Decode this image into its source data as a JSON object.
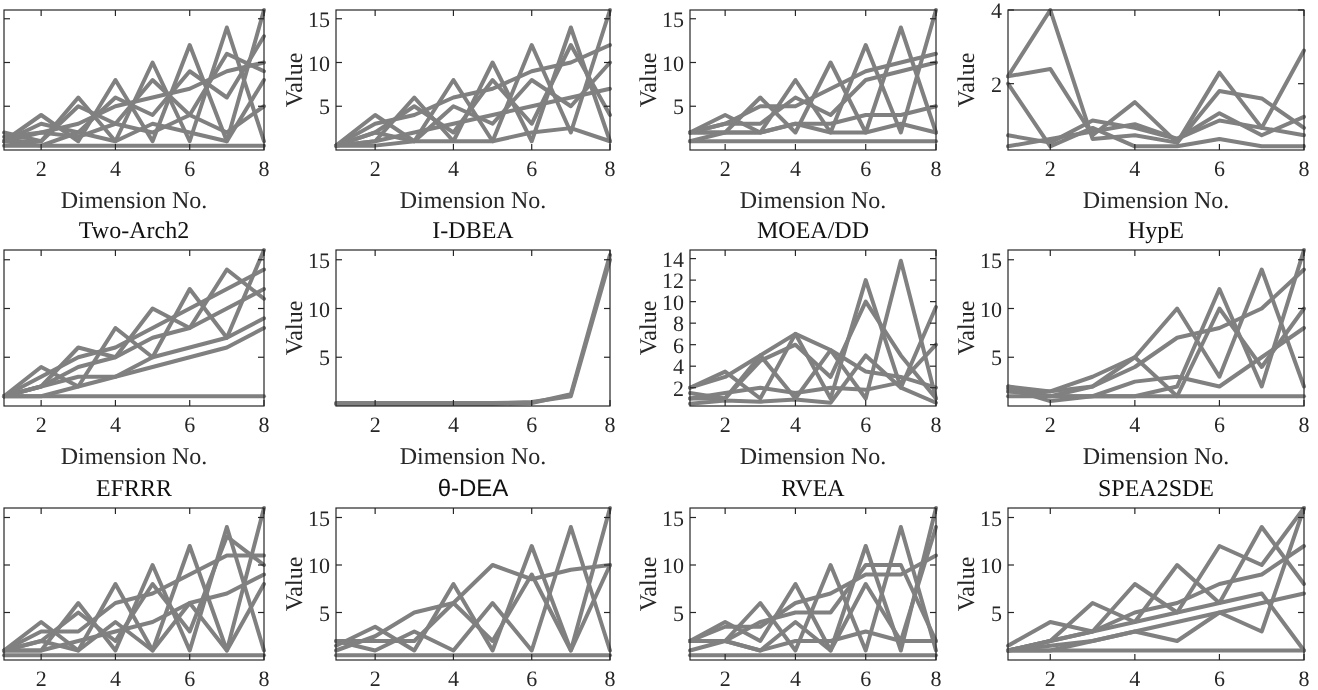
{
  "chart_data": [
    {
      "type": "line",
      "xlabel": "Dimension No.",
      "x": [
        1,
        2,
        3,
        4,
        5,
        6,
        7,
        8
      ],
      "xlim": [
        1,
        8
      ],
      "xticks": [
        2,
        4,
        6,
        8
      ],
      "ylim": [
        0,
        16
      ],
      "yticks": [
        5,
        10,
        15
      ],
      "tick_labels": "x",
      "series": [
        {
          "color": "#808080",
          "values": [
            1,
            4,
            1,
            8,
            1,
            12,
            1,
            16
          ]
        },
        {
          "color": "#808080",
          "values": [
            1,
            1,
            6,
            1,
            10,
            1,
            14,
            1
          ]
        },
        {
          "color": "#808080",
          "values": [
            1,
            2,
            3,
            5,
            6,
            7,
            9,
            10
          ]
        },
        {
          "color": "#808080",
          "values": [
            2,
            1,
            5,
            3,
            8,
            4,
            11,
            9
          ]
        },
        {
          "color": "#808080",
          "values": [
            1,
            3,
            2,
            6,
            4,
            9,
            6,
            13
          ]
        },
        {
          "color": "#808080",
          "values": [
            0.5,
            0.5,
            0.5,
            0.5,
            0.5,
            0.5,
            0.5,
            0.5
          ]
        },
        {
          "color": "#808080",
          "values": [
            1.5,
            2,
            1.5,
            3,
            2,
            4,
            2,
            5
          ]
        },
        {
          "color": "#808080",
          "values": [
            1,
            0.5,
            2,
            1,
            3,
            2,
            1,
            8
          ]
        }
      ]
    },
    {
      "type": "line",
      "xlabel": "Dimension No.",
      "ylabel": "Value",
      "x": [
        1,
        2,
        3,
        4,
        5,
        6,
        7,
        8
      ],
      "xlim": [
        1,
        8
      ],
      "xticks": [
        2,
        4,
        6,
        8
      ],
      "ylim": [
        0,
        16
      ],
      "yticks": [
        5,
        10,
        15
      ],
      "series": [
        {
          "color": "#808080",
          "values": [
            0.5,
            4,
            1,
            8,
            1,
            12,
            2,
            16
          ]
        },
        {
          "color": "#808080",
          "values": [
            0.5,
            1,
            6,
            1,
            10,
            1,
            14,
            1
          ]
        },
        {
          "color": "#808080",
          "values": [
            0.5,
            3,
            4,
            6,
            7,
            9,
            10,
            12
          ]
        },
        {
          "color": "#808080",
          "values": [
            0.5,
            2,
            5,
            2,
            8,
            3,
            12,
            4
          ]
        },
        {
          "color": "#808080",
          "values": [
            0.5,
            1,
            2,
            3,
            4,
            5,
            6,
            7
          ]
        },
        {
          "color": "#808080",
          "values": [
            0.5,
            0.5,
            1,
            1,
            1,
            2,
            2.5,
            1
          ]
        },
        {
          "color": "#808080",
          "values": [
            0.5,
            2,
            1,
            5,
            3,
            8,
            5,
            10
          ]
        }
      ]
    },
    {
      "type": "line",
      "xlabel": "Dimension No.",
      "ylabel": "Value",
      "x": [
        1,
        2,
        3,
        4,
        5,
        6,
        7,
        8
      ],
      "xlim": [
        1,
        8
      ],
      "xticks": [
        2,
        4,
        6,
        8
      ],
      "ylim": [
        0,
        16
      ],
      "yticks": [
        5,
        10,
        15
      ],
      "series": [
        {
          "color": "#808080",
          "values": [
            2,
            4,
            2,
            8,
            2,
            12,
            2,
            16
          ]
        },
        {
          "color": "#808080",
          "values": [
            2,
            2,
            6,
            2,
            10,
            2,
            14,
            2
          ]
        },
        {
          "color": "#808080",
          "values": [
            2,
            3,
            5,
            5,
            7,
            9,
            10,
            11
          ]
        },
        {
          "color": "#808080",
          "values": [
            2,
            3,
            3,
            6,
            4,
            8,
            9,
            10
          ]
        },
        {
          "color": "#808080",
          "values": [
            1,
            2,
            2,
            3,
            3,
            4,
            4,
            5
          ]
        },
        {
          "color": "#808080",
          "values": [
            1,
            1,
            1,
            1,
            1,
            1,
            1,
            1
          ]
        },
        {
          "color": "#808080",
          "values": [
            2,
            2,
            2,
            3,
            2,
            2,
            3,
            2
          ]
        }
      ]
    },
    {
      "type": "line",
      "xlabel": "Dimension No.",
      "ylabel": "Value",
      "x": [
        1,
        2,
        3,
        4,
        5,
        6,
        7,
        8
      ],
      "xlim": [
        1,
        8
      ],
      "xticks": [
        2,
        4,
        6,
        8
      ],
      "ylim": [
        0.2,
        4
      ],
      "yticks": [
        2,
        4
      ],
      "series": [
        {
          "color": "#808080",
          "values": [
            2.2,
            4,
            0.5,
            0.6,
            0.4,
            2.3,
            0.8,
            2.9
          ]
        },
        {
          "color": "#808080",
          "values": [
            2.2,
            2.4,
            0.6,
            1.5,
            0.4,
            1.8,
            1.6,
            0.8
          ]
        },
        {
          "color": "#808080",
          "values": [
            0.6,
            0.4,
            1,
            0.8,
            0.5,
            1,
            0.8,
            0.6
          ]
        },
        {
          "color": "#808080",
          "values": [
            2,
            0.3,
            0.8,
            0.3,
            0.3,
            0.5,
            0.3,
            0.3
          ]
        },
        {
          "color": "#808080",
          "values": [
            0.3,
            0.5,
            0.7,
            0.9,
            0.5,
            1.2,
            0.6,
            1.1
          ]
        }
      ]
    },
    {
      "type": "line",
      "title": "Two-Arch2",
      "xlabel": "Dimension No.",
      "x": [
        1,
        2,
        3,
        4,
        5,
        6,
        7,
        8
      ],
      "xlim": [
        1,
        8
      ],
      "xticks": [
        2,
        4,
        6,
        8
      ],
      "ylim": [
        0,
        16
      ],
      "yticks": [
        5,
        10,
        15
      ],
      "tick_labels": "x",
      "series": [
        {
          "color": "#808080",
          "values": [
            1,
            4,
            2,
            8,
            5,
            12,
            7,
            16
          ]
        },
        {
          "color": "#808080",
          "values": [
            1,
            2,
            6,
            5,
            10,
            8,
            14,
            11
          ]
        },
        {
          "color": "#808080",
          "values": [
            1,
            3,
            5,
            6,
            8,
            10,
            12,
            14
          ]
        },
        {
          "color": "#808080",
          "values": [
            1,
            2,
            4,
            5,
            7,
            8,
            10,
            12
          ]
        },
        {
          "color": "#808080",
          "values": [
            1,
            1,
            2,
            3,
            4,
            5,
            6,
            8
          ]
        },
        {
          "color": "#808080",
          "values": [
            1,
            1,
            1,
            1,
            1,
            1,
            1,
            1
          ]
        },
        {
          "color": "#808080",
          "values": [
            1,
            2,
            3,
            3,
            5,
            6,
            7,
            9
          ]
        }
      ]
    },
    {
      "type": "line",
      "title": "I-DBEA",
      "xlabel": "Dimension No.",
      "ylabel": "Value",
      "x": [
        1,
        2,
        3,
        4,
        5,
        6,
        7,
        8
      ],
      "xlim": [
        1,
        8
      ],
      "xticks": [
        2,
        4,
        6,
        8
      ],
      "ylim": [
        0,
        16
      ],
      "yticks": [
        5,
        10,
        15
      ],
      "series": [
        {
          "color": "#808080",
          "values": [
            0.2,
            0.2,
            0.2,
            0.2,
            0.2,
            0.3,
            1.2,
            15.5
          ]
        },
        {
          "color": "#808080",
          "values": [
            0.3,
            0.3,
            0.3,
            0.3,
            0.3,
            0.4,
            1,
            15
          ]
        }
      ]
    },
    {
      "type": "line",
      "title": "MOEA/DD",
      "xlabel": "Dimension No.",
      "ylabel": "Value",
      "x": [
        1,
        2,
        3,
        4,
        5,
        6,
        7,
        8
      ],
      "xlim": [
        1,
        8
      ],
      "xticks": [
        2,
        4,
        6,
        8
      ],
      "ylim": [
        0.3,
        14.8
      ],
      "yticks": [
        2,
        4,
        6,
        8,
        10,
        12,
        14
      ],
      "series": [
        {
          "color": "#808080",
          "values": [
            2,
            3.5,
            1,
            7,
            1,
            12,
            2,
            9.5
          ]
        },
        {
          "color": "#808080",
          "values": [
            1,
            1,
            5,
            1,
            5.5,
            1,
            13.8,
            1
          ]
        },
        {
          "color": "#808080",
          "values": [
            2,
            3,
            5,
            7,
            5.5,
            3.5,
            3,
            2
          ]
        },
        {
          "color": "#808080",
          "values": [
            1,
            1.5,
            2,
            1.5,
            2,
            1.8,
            2.5,
            6
          ]
        },
        {
          "color": "#808080",
          "values": [
            0.5,
            0.8,
            0.7,
            0.9,
            0.6,
            5,
            2,
            0.6
          ]
        },
        {
          "color": "#808080",
          "values": [
            1.5,
            1,
            4.5,
            6,
            3,
            10,
            5,
            1
          ]
        }
      ]
    },
    {
      "type": "line",
      "title": "HypE",
      "xlabel": "Dimension No.",
      "ylabel": "Value",
      "x": [
        1,
        2,
        3,
        4,
        5,
        6,
        7,
        8
      ],
      "xlim": [
        1,
        8
      ],
      "xticks": [
        2,
        4,
        6,
        8
      ],
      "ylim": [
        0,
        16
      ],
      "yticks": [
        5,
        10,
        15
      ],
      "series": [
        {
          "color": "#808080",
          "values": [
            2,
            1.5,
            3,
            5,
            10,
            3,
            14,
            2
          ]
        },
        {
          "color": "#808080",
          "values": [
            1.8,
            0.5,
            1,
            1,
            2,
            12,
            2,
            16
          ]
        },
        {
          "color": "#808080",
          "values": [
            1.5,
            1.5,
            2,
            5,
            1,
            10,
            4,
            10
          ]
        },
        {
          "color": "#808080",
          "values": [
            1,
            1,
            1,
            1,
            1,
            1,
            1,
            1
          ]
        },
        {
          "color": "#808080",
          "values": [
            2,
            1,
            2,
            4,
            7,
            8,
            10,
            14
          ]
        },
        {
          "color": "#808080",
          "values": [
            1.5,
            1,
            1,
            2.5,
            3,
            2,
            5,
            8
          ]
        }
      ]
    },
    {
      "type": "line",
      "title": "EFRRR",
      "x": [
        1,
        2,
        3,
        4,
        5,
        6,
        7,
        8
      ],
      "xlim": [
        1,
        8
      ],
      "xticks": [
        2,
        4,
        6,
        8
      ],
      "ylim": [
        0,
        16
      ],
      "yticks": [
        5,
        10,
        15
      ],
      "tick_labels": "x",
      "series": [
        {
          "color": "#808080",
          "values": [
            1,
            4,
            1,
            8,
            1,
            12,
            1,
            16
          ]
        },
        {
          "color": "#808080",
          "values": [
            1,
            1,
            6,
            1,
            10,
            1,
            14,
            1
          ]
        },
        {
          "color": "#808080",
          "values": [
            1,
            2,
            5,
            2,
            8,
            3,
            13,
            10
          ]
        },
        {
          "color": "#808080",
          "values": [
            1,
            3,
            3,
            6,
            7,
            9,
            11,
            11
          ]
        },
        {
          "color": "#808080",
          "values": [
            1,
            1,
            2,
            3,
            4,
            6,
            7,
            9
          ]
        },
        {
          "color": "#808080",
          "values": [
            0.5,
            0.5,
            0.5,
            0.5,
            0.5,
            0.5,
            0.5,
            0.5
          ]
        },
        {
          "color": "#808080",
          "values": [
            1,
            2,
            1,
            4,
            1,
            6,
            1,
            8
          ]
        }
      ]
    },
    {
      "type": "line",
      "title": "θ-DEA",
      "ylabel": "Value",
      "x": [
        1,
        2,
        3,
        4,
        5,
        6,
        7,
        8
      ],
      "xlim": [
        1,
        8
      ],
      "xticks": [
        2,
        4,
        6,
        8
      ],
      "ylim": [
        0,
        16
      ],
      "yticks": [
        5,
        10,
        15
      ],
      "series": [
        {
          "color": "#808080",
          "values": [
            1.5,
            3.5,
            1,
            8,
            1,
            12,
            1,
            16
          ]
        },
        {
          "color": "#808080",
          "values": [
            1,
            2.5,
            5,
            6,
            10,
            8.5,
            9.5,
            10
          ]
        },
        {
          "color": "#808080",
          "values": [
            2,
            1,
            3,
            1,
            6,
            1,
            14,
            1
          ]
        },
        {
          "color": "#808080",
          "values": [
            0.5,
            0.5,
            0.5,
            0.5,
            0.5,
            0.5,
            0.5,
            0.5
          ]
        },
        {
          "color": "#808080",
          "values": [
            2,
            2,
            2,
            6,
            2,
            9,
            1,
            10
          ]
        }
      ]
    },
    {
      "type": "line",
      "title": "RVEA",
      "ylabel": "Value",
      "x": [
        1,
        2,
        3,
        4,
        5,
        6,
        7,
        8
      ],
      "xlim": [
        1,
        8
      ],
      "xticks": [
        2,
        4,
        6,
        8
      ],
      "ylim": [
        0,
        16
      ],
      "yticks": [
        5,
        10,
        15
      ],
      "series": [
        {
          "color": "#808080",
          "values": [
            2,
            4,
            2,
            8,
            1,
            12,
            1,
            16
          ]
        },
        {
          "color": "#808080",
          "values": [
            2,
            2,
            6,
            1,
            10,
            1,
            14,
            1
          ]
        },
        {
          "color": "#808080",
          "values": [
            2,
            3.5,
            3.5,
            6,
            7,
            9,
            9,
            11
          ]
        },
        {
          "color": "#808080",
          "values": [
            2,
            2,
            4,
            5,
            5,
            10,
            10,
            2
          ]
        },
        {
          "color": "#808080",
          "values": [
            0.5,
            0.5,
            0.5,
            0.5,
            0.5,
            0.5,
            0.5,
            0.5
          ]
        },
        {
          "color": "#808080",
          "values": [
            2,
            2,
            1,
            2,
            2,
            3,
            2,
            2
          ]
        },
        {
          "color": "#808080",
          "values": [
            1,
            2,
            1,
            4,
            1,
            8,
            2,
            14
          ]
        }
      ]
    },
    {
      "type": "line",
      "title": "SPEA2SDE",
      "ylabel": "Value",
      "x": [
        1,
        2,
        3,
        4,
        5,
        6,
        7,
        8
      ],
      "xlim": [
        1,
        8
      ],
      "xticks": [
        2,
        4,
        6,
        8
      ],
      "ylim": [
        0,
        16
      ],
      "yticks": [
        5,
        10,
        15
      ],
      "series": [
        {
          "color": "#808080",
          "values": [
            1.5,
            4,
            3,
            8,
            5,
            12,
            10,
            16
          ]
        },
        {
          "color": "#808080",
          "values": [
            1,
            2,
            6,
            4,
            10,
            6,
            14,
            8
          ]
        },
        {
          "color": "#808080",
          "values": [
            1,
            2,
            3,
            5,
            6,
            8,
            9,
            12
          ]
        },
        {
          "color": "#808080",
          "values": [
            1,
            1,
            2,
            3,
            4,
            5,
            6,
            7
          ]
        },
        {
          "color": "#808080",
          "values": [
            1,
            1,
            1,
            1,
            1,
            1,
            1,
            1
          ]
        },
        {
          "color": "#808080",
          "values": [
            1,
            2,
            3,
            4,
            5,
            6,
            7,
            1
          ]
        },
        {
          "color": "#808080",
          "values": [
            1,
            1.5,
            2,
            3,
            2,
            5,
            3,
            16
          ]
        }
      ]
    }
  ]
}
